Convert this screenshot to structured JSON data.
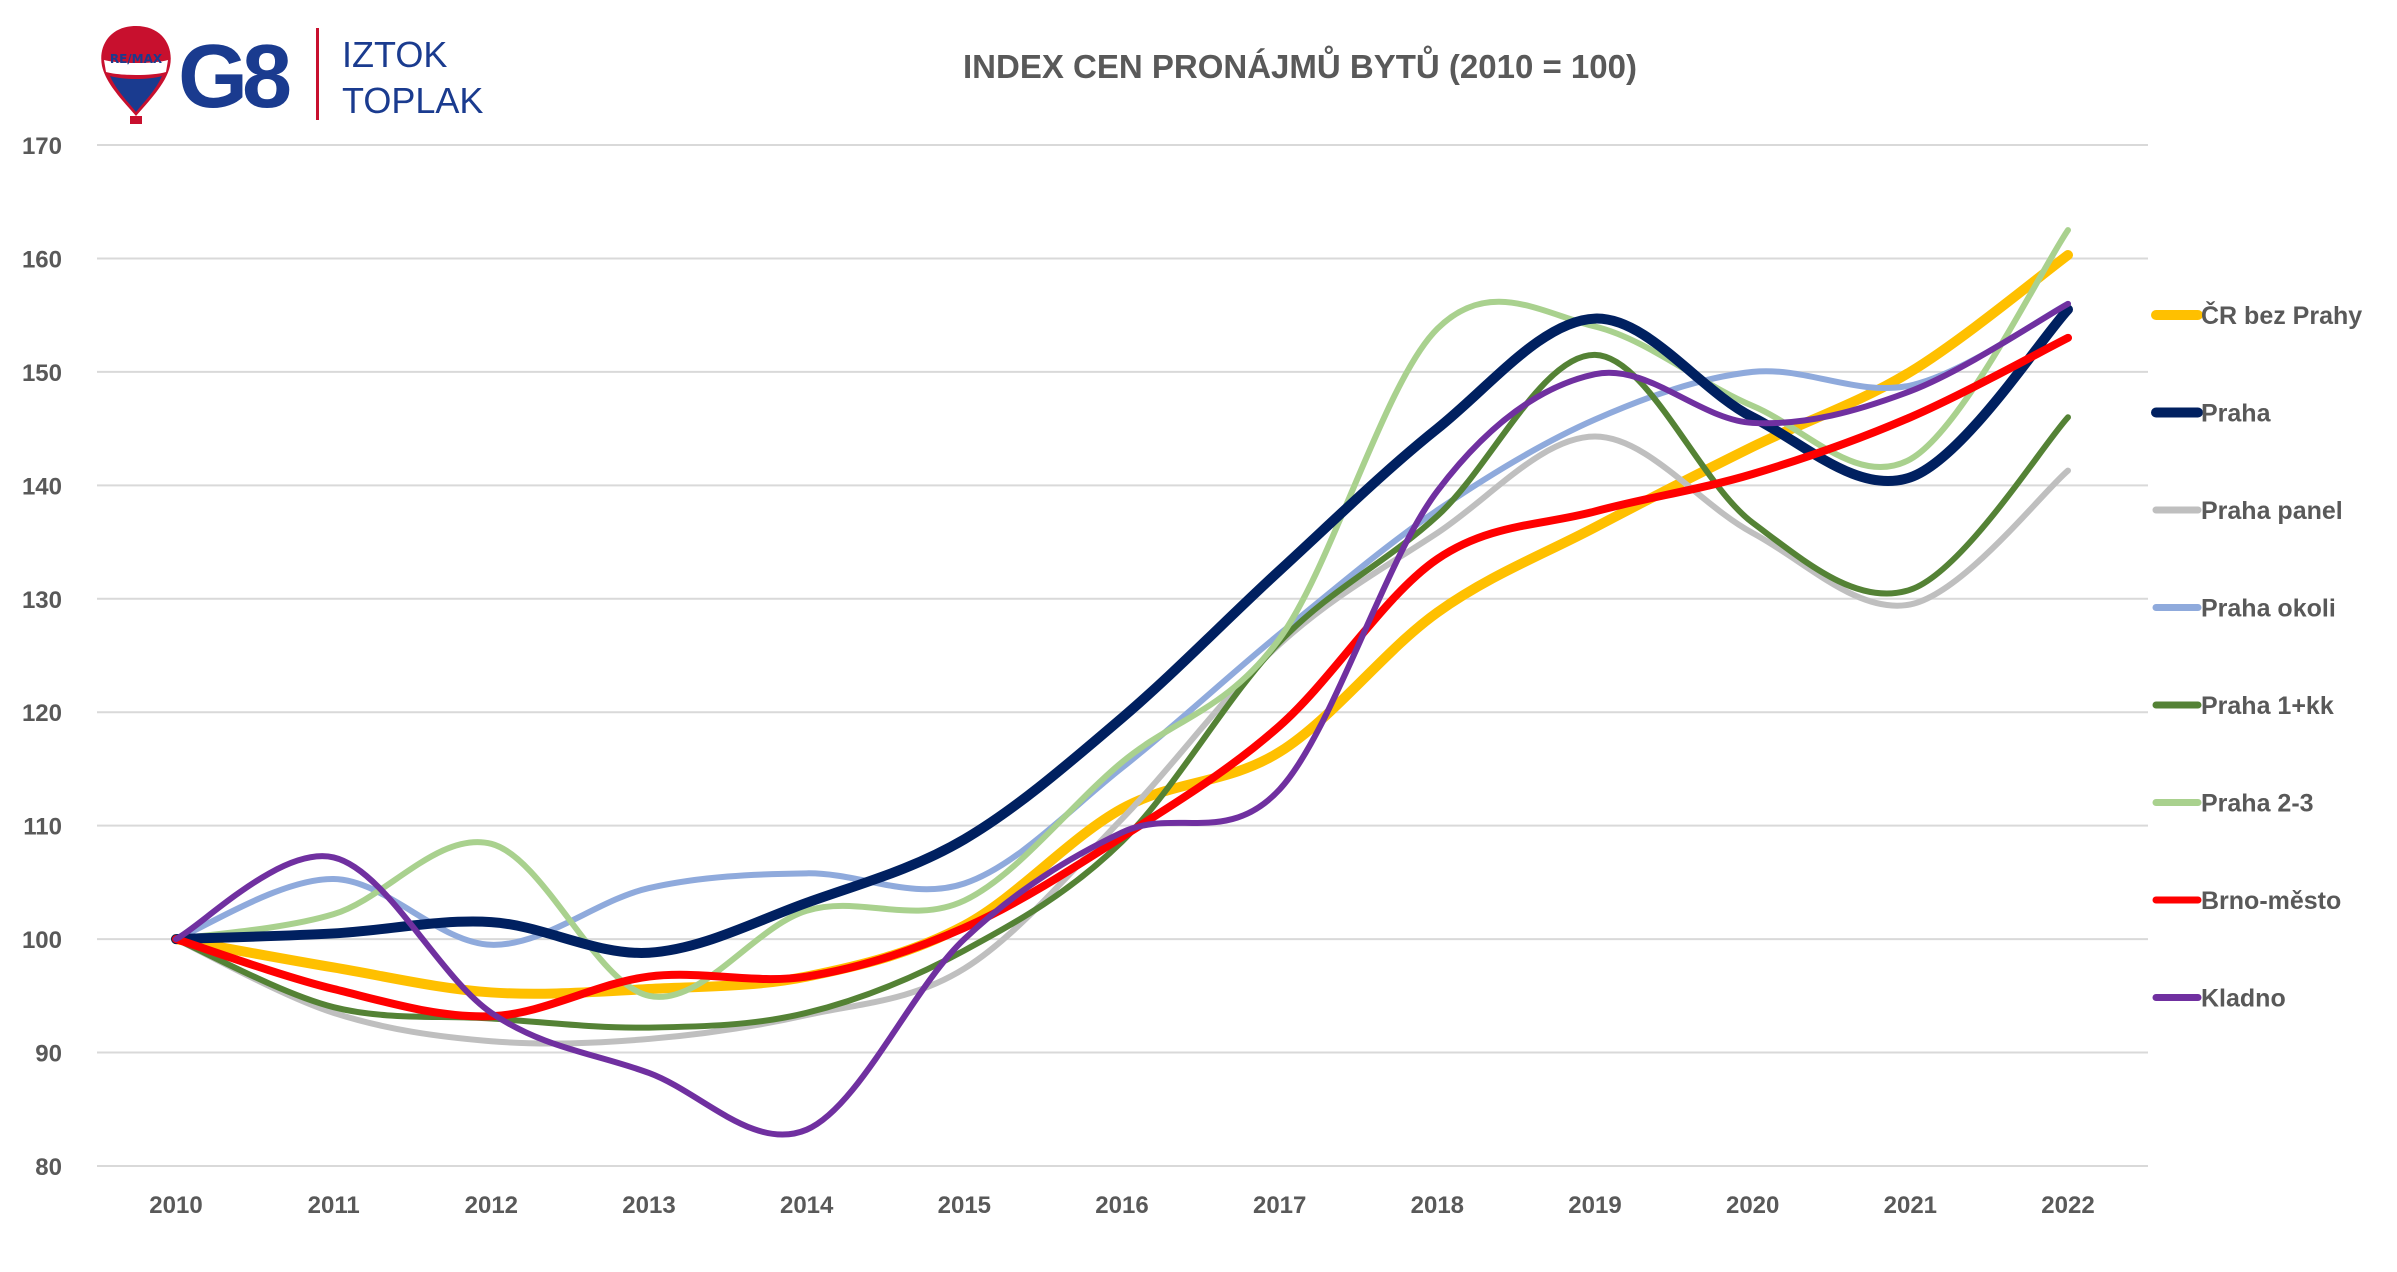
{
  "logo": {
    "brand_small": "RE/MAX",
    "brand": "G8",
    "name_line1": "IZTOK",
    "name_line2": "TOPLAK"
  },
  "chart_data": {
    "type": "line",
    "title": "INDEX CEN PRONÁJMŮ BYTŮ (2010 = 100)",
    "xlabel": "",
    "ylabel": "",
    "x": [
      "2010",
      "2011",
      "2012",
      "2013",
      "2014",
      "2015",
      "2016",
      "2017",
      "2018",
      "2019",
      "2020",
      "2021",
      "2022"
    ],
    "ylim": [
      80,
      170
    ],
    "yticks": [
      80,
      90,
      100,
      110,
      120,
      130,
      140,
      150,
      160,
      170
    ],
    "grid": true,
    "legend_position": "right",
    "series": [
      {
        "name": "ČR bez Prahy",
        "color": "#ffc000",
        "values": [
          100,
          97.5,
          95.3,
          95.6,
          96.7,
          101.2,
          111.5,
          116.5,
          128.8,
          136.3,
          143.4,
          150.0,
          160.3
        ]
      },
      {
        "name": "Praha",
        "color": "#002060",
        "values": [
          100,
          100.5,
          101.5,
          98.8,
          103.2,
          108.8,
          119.5,
          132.5,
          145.0,
          154.7,
          146.0,
          140.7,
          155.5
        ]
      },
      {
        "name": "Praha panel",
        "color": "#bfbfbf",
        "values": [
          100,
          93.5,
          91.0,
          91.2,
          93.3,
          97.4,
          110.6,
          126.0,
          135.8,
          144.3,
          135.8,
          129.5,
          141.3
        ]
      },
      {
        "name": "Praha okoli",
        "color": "#8faadc",
        "values": [
          100,
          105.3,
          99.5,
          104.5,
          105.8,
          104.9,
          115.1,
          126.9,
          137.8,
          145.8,
          150.0,
          148.8,
          156.0
        ]
      },
      {
        "name": "Praha 1+kk",
        "color": "#548235",
        "values": [
          100,
          94.0,
          93.0,
          92.2,
          93.5,
          99.0,
          108.6,
          126.2,
          137.3,
          151.5,
          136.7,
          130.8,
          146.0
        ]
      },
      {
        "name": "Praha 2-3",
        "color": "#a9d18e",
        "values": [
          100,
          102.2,
          108.4,
          95.0,
          102.5,
          103.4,
          115.6,
          126.5,
          153.8,
          154.0,
          147.0,
          142.3,
          162.5
        ]
      },
      {
        "name": "Brno-město",
        "color": "#ff0000",
        "values": [
          100,
          95.6,
          93.2,
          96.7,
          96.7,
          101.0,
          109.0,
          118.8,
          133.5,
          137.7,
          141.0,
          146.0,
          153.0
        ]
      },
      {
        "name": "Kladno",
        "color": "#7030a0",
        "values": [
          100,
          107.2,
          93.5,
          88.2,
          83.2,
          100.0,
          109.4,
          113.2,
          139.5,
          149.8,
          145.5,
          148.3,
          156.0
        ]
      }
    ]
  }
}
